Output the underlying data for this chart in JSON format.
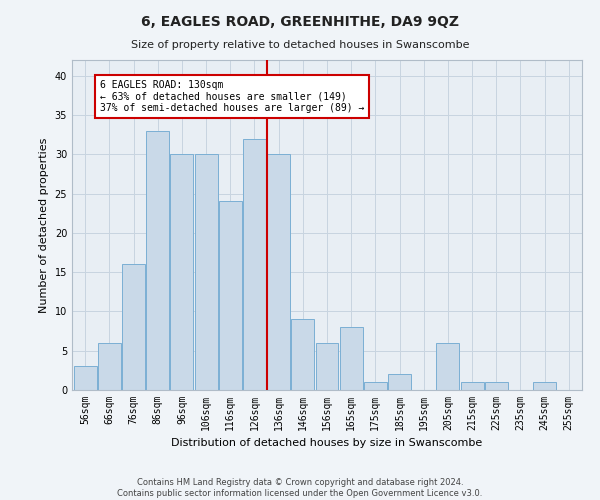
{
  "title": "6, EAGLES ROAD, GREENHITHE, DA9 9QZ",
  "subtitle": "Size of property relative to detached houses in Swanscombe",
  "xlabel": "Distribution of detached houses by size in Swanscombe",
  "ylabel": "Number of detached properties",
  "footer_line1": "Contains HM Land Registry data © Crown copyright and database right 2024.",
  "footer_line2": "Contains public sector information licensed under the Open Government Licence v3.0.",
  "bin_labels": [
    "56sqm",
    "66sqm",
    "76sqm",
    "86sqm",
    "96sqm",
    "106sqm",
    "116sqm",
    "126sqm",
    "136sqm",
    "146sqm",
    "156sqm",
    "165sqm",
    "175sqm",
    "185sqm",
    "195sqm",
    "205sqm",
    "215sqm",
    "225sqm",
    "235sqm",
    "245sqm",
    "255sqm"
  ],
  "bar_values": [
    3,
    6,
    16,
    33,
    30,
    30,
    24,
    32,
    30,
    9,
    6,
    8,
    1,
    2,
    0,
    6,
    1,
    1,
    0,
    1,
    0
  ],
  "bar_color": "#c9d9e8",
  "bar_edge_color": "#7bafd4",
  "grid_color": "#c8d4e0",
  "background_color": "#e8eef4",
  "fig_background_color": "#f0f4f8",
  "annotation_text": "6 EAGLES ROAD: 130sqm\n← 63% of detached houses are smaller (149)\n37% of semi-detached houses are larger (89) →",
  "annotation_box_facecolor": "#ffffff",
  "annotation_box_edgecolor": "#cc0000",
  "vline_color": "#cc0000",
  "vline_x": 7.5,
  "ylim": [
    0,
    42
  ],
  "yticks": [
    0,
    5,
    10,
    15,
    20,
    25,
    30,
    35,
    40
  ],
  "title_fontsize": 10,
  "subtitle_fontsize": 8,
  "xlabel_fontsize": 8,
  "ylabel_fontsize": 8,
  "tick_fontsize": 7,
  "annotation_fontsize": 7,
  "footer_fontsize": 6
}
